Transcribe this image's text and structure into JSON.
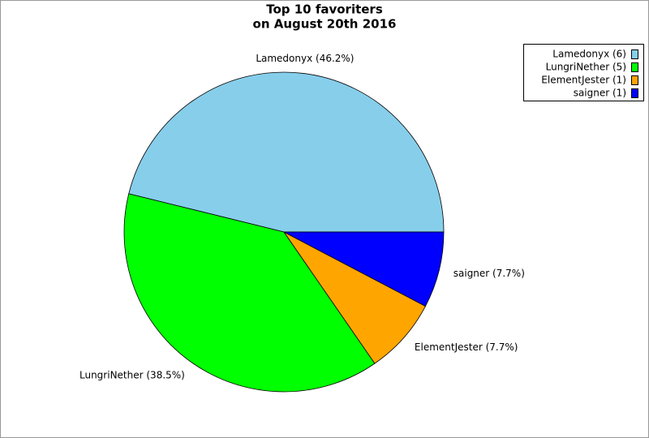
{
  "chart_data": {
    "type": "pie",
    "title": "Top 10 favoriters",
    "subtitle": "on August 20th 2016",
    "values": [
      46.2,
      38.5,
      7.7,
      7.7
    ],
    "value_labels": [
      "Lamedonyx (46.2%)",
      "LungriNether (38.5%)",
      "ElementJester (7.7%)",
      "saigner (7.7%)"
    ],
    "legend_labels": [
      "Lamedonyx (6)",
      "LungriNether (5)",
      "ElementJester (1)",
      "saigner (1)"
    ],
    "colors": [
      "#87ceeb",
      "#00ff00",
      "#ffa500",
      "#0000ff"
    ],
    "legend": "upper right"
  }
}
